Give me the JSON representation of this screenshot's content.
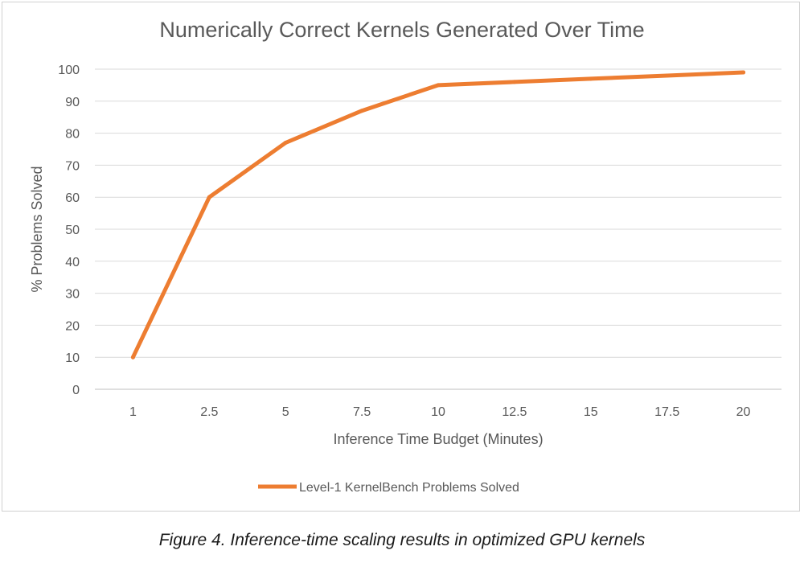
{
  "chart_data": {
    "type": "line",
    "title": "Numerically Correct Kernels Generated Over Time",
    "xlabel": "Inference Time Budget (Minutes)",
    "ylabel": "% Problems Solved",
    "categories": [
      "1",
      "2.5",
      "5",
      "7.5",
      "10",
      "12.5",
      "15",
      "17.5",
      "20"
    ],
    "y_ticks": [
      "0",
      "10",
      "20",
      "30",
      "40",
      "50",
      "60",
      "70",
      "80",
      "90",
      "100"
    ],
    "ylim": [
      0,
      100
    ],
    "grid": true,
    "legend_position": "bottom",
    "series": [
      {
        "name": "Level-1 KernelBench Problems Solved",
        "color": "#ed7d31",
        "values": [
          10,
          60,
          77,
          87,
          95,
          96,
          97,
          98,
          99
        ]
      }
    ]
  },
  "caption": "Figure 4. Inference-time scaling results in optimized GPU kernels"
}
